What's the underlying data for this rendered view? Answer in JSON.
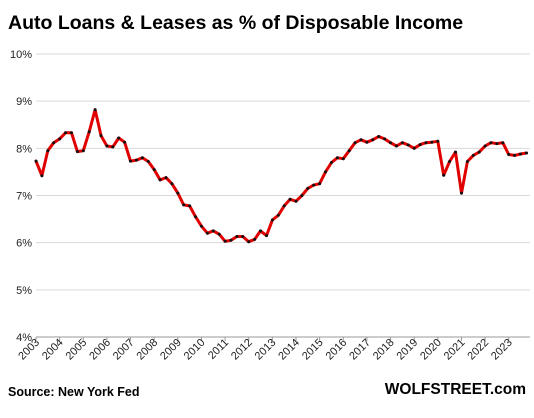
{
  "page": {
    "title": "Auto Loans & Leases as % of Disposable Income",
    "source": "Source: New York Fed",
    "brand": "WOLFSTREET.com"
  },
  "chart_data": {
    "type": "line",
    "title": "Auto Loans & Leases as % of Disposable Income",
    "xlabel": "",
    "ylabel": "",
    "x_unit": "year (quarterly)",
    "xlim": [
      2003,
      2023.9
    ],
    "ylim": [
      4,
      10
    ],
    "y_ticks": [
      "4%",
      "5%",
      "6%",
      "7%",
      "8%",
      "9%",
      "10%"
    ],
    "x_ticks": [
      "2003",
      "2004",
      "2005",
      "2006",
      "2007",
      "2008",
      "2009",
      "2010",
      "2011",
      "2012",
      "2013",
      "2014",
      "2015",
      "2016",
      "2017",
      "2018",
      "2019",
      "2020",
      "2021",
      "2022",
      "2023"
    ],
    "grid": "horizontal",
    "series_color": "#e00000",
    "marker_color": "#111111",
    "series": [
      {
        "x": [
          2003.0,
          2003.25,
          2003.5,
          2003.75,
          2004.0,
          2004.25,
          2004.5,
          2004.75,
          2005.0,
          2005.25,
          2005.5,
          2005.75,
          2006.0,
          2006.25,
          2006.5,
          2006.75,
          2007.0,
          2007.25,
          2007.5,
          2007.75,
          2008.0,
          2008.25,
          2008.5,
          2008.75,
          2009.0,
          2009.25,
          2009.5,
          2009.75,
          2010.0,
          2010.25,
          2010.5,
          2010.75,
          2011.0,
          2011.25,
          2011.5,
          2011.75,
          2012.0,
          2012.25,
          2012.5,
          2012.75,
          2013.0,
          2013.25,
          2013.5,
          2013.75,
          2014.0,
          2014.25,
          2014.5,
          2014.75,
          2015.0,
          2015.25,
          2015.5,
          2015.75,
          2016.0,
          2016.25,
          2016.5,
          2016.75,
          2017.0,
          2017.25,
          2017.5,
          2017.75,
          2018.0,
          2018.25,
          2018.5,
          2018.75,
          2019.0,
          2019.25,
          2019.5,
          2019.75,
          2020.0,
          2020.25,
          2020.5,
          2020.75,
          2021.0,
          2021.25,
          2021.5,
          2021.75,
          2022.0,
          2022.25,
          2022.5,
          2022.75,
          2023.0,
          2023.25,
          2023.5,
          2023.75
        ],
        "values": [
          7.73,
          7.42,
          7.95,
          8.12,
          8.2,
          8.33,
          8.33,
          7.93,
          7.95,
          8.35,
          8.82,
          8.27,
          8.05,
          8.03,
          8.22,
          8.13,
          7.73,
          7.75,
          7.8,
          7.72,
          7.55,
          7.33,
          7.38,
          7.25,
          7.05,
          6.8,
          6.78,
          6.55,
          6.35,
          6.2,
          6.25,
          6.18,
          6.03,
          6.05,
          6.13,
          6.13,
          6.02,
          6.07,
          6.25,
          6.15,
          6.48,
          6.58,
          6.78,
          6.92,
          6.88,
          7.0,
          7.15,
          7.22,
          7.25,
          7.5,
          7.7,
          7.8,
          7.78,
          7.95,
          8.12,
          8.18,
          8.13,
          8.18,
          8.25,
          8.2,
          8.12,
          8.05,
          8.12,
          8.07,
          8.0,
          8.08,
          8.12,
          8.13,
          8.15,
          7.43,
          7.72,
          7.92,
          7.05,
          7.72,
          7.85,
          7.92,
          8.05,
          8.12,
          8.1,
          8.12,
          7.87,
          7.85,
          7.88,
          7.9
        ]
      }
    ]
  }
}
